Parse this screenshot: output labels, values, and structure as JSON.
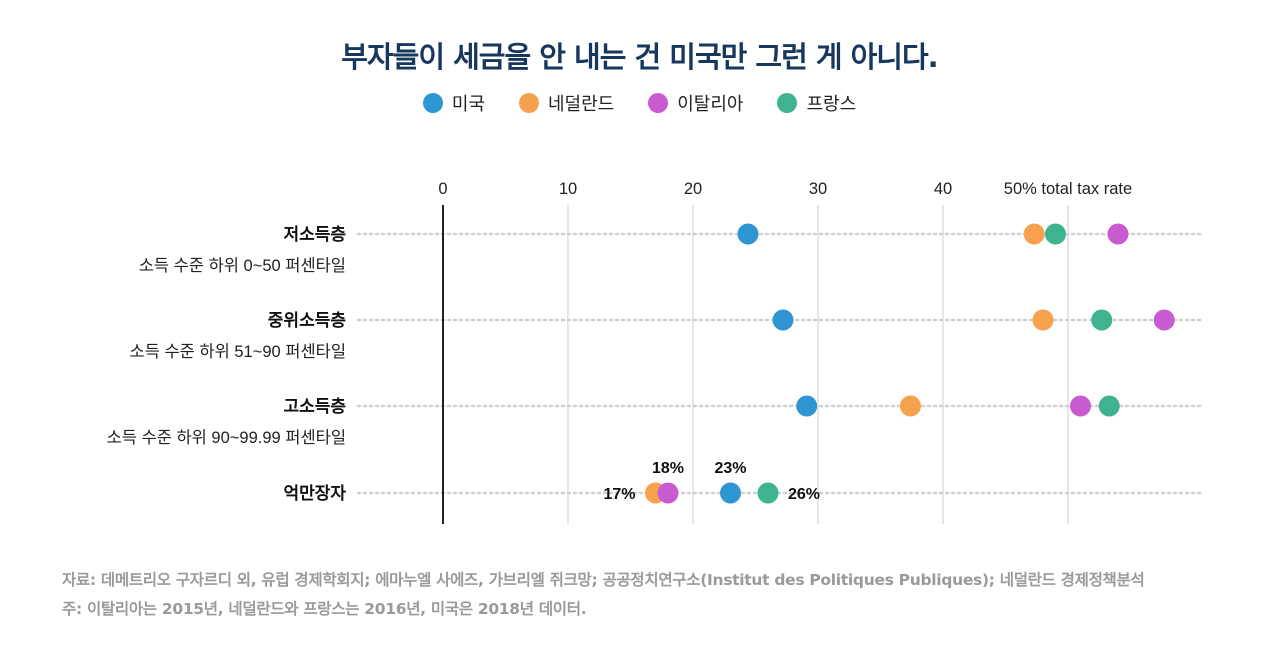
{
  "title": "부자들이 세금을 안 내는 건 미국만 그런 게 아니다.",
  "colors": {
    "미국": "#2e95d3",
    "네덜란드": "#f7a14f",
    "이탈리아": "#c95bd1",
    "프랑스": "#3fb28f"
  },
  "legend": [
    {
      "label": "미국",
      "color": "#2e95d3"
    },
    {
      "label": "네덜란드",
      "color": "#f7a14f"
    },
    {
      "label": "이탈리아",
      "color": "#c95bd1"
    },
    {
      "label": "프랑스",
      "color": "#3fb28f"
    }
  ],
  "chart_data": {
    "type": "scatter",
    "xlim": [
      0,
      50
    ],
    "ticks": [
      0,
      10,
      20,
      30,
      40,
      50
    ],
    "tick_labels": [
      "0",
      "10",
      "20",
      "30",
      "40",
      "50% total tax rate"
    ],
    "grid": true,
    "legend_position": "top",
    "rows": [
      {
        "label": "저소득층",
        "sublabel": "소득 수준 하위 0~50 퍼센타일",
        "values": {
          "미국": 24.4,
          "네덜란드": 47.3,
          "이탈리아": 54.0,
          "프랑스": 49.0
        }
      },
      {
        "label": "중위소득층",
        "sublabel": "소득 수준 하위 51~90 퍼센타일",
        "values": {
          "미국": 27.2,
          "네덜란드": 48.0,
          "이탈리아": 57.7,
          "프랑스": 52.7
        }
      },
      {
        "label": "고소득층",
        "sublabel": "소득 수준 하위 90~99.99 퍼센타일",
        "values": {
          "미국": 29.1,
          "네덜란드": 37.4,
          "이탈리아": 51.0,
          "프랑스": 53.3
        }
      },
      {
        "label": "억만장자",
        "sublabel": "",
        "values": {
          "미국": 23.0,
          "네덜란드": 17.0,
          "이탈리아": 18.0,
          "프랑스": 26.0
        }
      }
    ],
    "annotations": [
      {
        "text": "18%",
        "series": "이탈리아",
        "row": 3
      },
      {
        "text": "23%",
        "series": "미국",
        "row": 3
      },
      {
        "text": "17%",
        "series": "네덜란드",
        "row": 3
      },
      {
        "text": "26%",
        "series": "프랑스",
        "row": 3
      }
    ]
  },
  "footer": {
    "source": "자료: 데메트리오 구자르디 외, 유럽 경제학회지; 에마누엘 사에즈, 가브리엘 쥐크망; 공공정치연구소(Institut des Politiques Publiques); 네덜란드 경제정책분석",
    "note": "주: 이탈리아는 2015년, 네덜란드와 프랑스는 2016년, 미국은 2018년 데이터."
  }
}
